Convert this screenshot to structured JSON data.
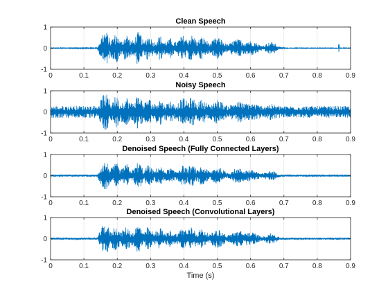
{
  "figure": {
    "xlabel": "Time (s)"
  },
  "chart_data": [
    {
      "type": "line",
      "title": "Clean Speech",
      "xlim": [
        0,
        0.9
      ],
      "ylim": [
        -1,
        1
      ],
      "xticks": [
        0,
        0.1,
        0.2,
        0.3,
        0.4,
        0.5,
        0.6,
        0.7,
        0.8,
        0.9
      ],
      "xtick_labels": [
        "0",
        "0.1",
        "0.2",
        "0.3",
        "0.4",
        "0.5",
        "0.6",
        "0.7",
        "0.8",
        "0.9"
      ],
      "yticks": [
        -1,
        0,
        1
      ],
      "ytick_labels": [
        "-1",
        "0",
        "1"
      ],
      "grid": true,
      "color": "#0072BD",
      "noise_floor": 0.02,
      "envelope_x": [
        0,
        0.14,
        0.15,
        0.16,
        0.17,
        0.18,
        0.19,
        0.2,
        0.21,
        0.22,
        0.23,
        0.24,
        0.25,
        0.26,
        0.27,
        0.28,
        0.29,
        0.3,
        0.31,
        0.32,
        0.33,
        0.34,
        0.35,
        0.36,
        0.37,
        0.38,
        0.39,
        0.4,
        0.41,
        0.42,
        0.43,
        0.44,
        0.45,
        0.46,
        0.47,
        0.48,
        0.49,
        0.5,
        0.51,
        0.52,
        0.53,
        0.54,
        0.55,
        0.56,
        0.57,
        0.58,
        0.59,
        0.6,
        0.61,
        0.62,
        0.63,
        0.64,
        0.65,
        0.66,
        0.67,
        0.68,
        0.69,
        0.7,
        0.71,
        0.72,
        0.9
      ],
      "envelope_y": [
        0.02,
        0.03,
        0.45,
        0.85,
        0.75,
        0.35,
        0.62,
        0.7,
        0.3,
        0.55,
        0.68,
        0.35,
        0.4,
        0.78,
        0.72,
        0.25,
        0.62,
        0.55,
        0.25,
        0.5,
        0.6,
        0.3,
        0.35,
        0.48,
        0.3,
        0.3,
        0.55,
        0.62,
        0.4,
        0.65,
        0.58,
        0.3,
        0.55,
        0.5,
        0.35,
        0.22,
        0.45,
        0.52,
        0.45,
        0.3,
        0.18,
        0.25,
        0.4,
        0.42,
        0.42,
        0.3,
        0.38,
        0.35,
        0.32,
        0.25,
        0.12,
        0.15,
        0.25,
        0.3,
        0.28,
        0.12,
        0.05,
        0.03,
        0.02,
        0.02,
        0.02
      ],
      "spikes": [
        {
          "x": 0.865,
          "amp": 0.18
        }
      ]
    },
    {
      "type": "line",
      "title": "Noisy Speech",
      "xlim": [
        0,
        0.9
      ],
      "ylim": [
        -1,
        1
      ],
      "xticks": [
        0,
        0.1,
        0.2,
        0.3,
        0.4,
        0.5,
        0.6,
        0.7,
        0.8,
        0.9
      ],
      "xtick_labels": [
        "0",
        "0.1",
        "0.2",
        "0.3",
        "0.4",
        "0.5",
        "0.6",
        "0.7",
        "0.8",
        "0.9"
      ],
      "yticks": [
        -1,
        0,
        1
      ],
      "ytick_labels": [
        "-1",
        "0",
        "1"
      ],
      "grid": true,
      "color": "#0072BD",
      "noise_floor": 0.28,
      "envelope_x": [
        0,
        0.14,
        0.15,
        0.16,
        0.17,
        0.18,
        0.19,
        0.2,
        0.21,
        0.22,
        0.23,
        0.24,
        0.25,
        0.26,
        0.27,
        0.28,
        0.29,
        0.3,
        0.31,
        0.32,
        0.33,
        0.34,
        0.35,
        0.36,
        0.37,
        0.38,
        0.39,
        0.4,
        0.41,
        0.42,
        0.43,
        0.44,
        0.45,
        0.46,
        0.47,
        0.48,
        0.49,
        0.5,
        0.51,
        0.52,
        0.53,
        0.54,
        0.55,
        0.56,
        0.57,
        0.58,
        0.59,
        0.6,
        0.61,
        0.62,
        0.63,
        0.64,
        0.65,
        0.66,
        0.67,
        0.68,
        0.69,
        0.7,
        0.71,
        0.72,
        0.9
      ],
      "envelope_y": [
        0.28,
        0.3,
        0.55,
        0.9,
        0.8,
        0.45,
        0.7,
        0.75,
        0.4,
        0.6,
        0.72,
        0.42,
        0.48,
        0.82,
        0.75,
        0.35,
        0.68,
        0.6,
        0.35,
        0.55,
        0.62,
        0.38,
        0.42,
        0.55,
        0.38,
        0.38,
        0.6,
        0.66,
        0.48,
        0.68,
        0.62,
        0.38,
        0.6,
        0.55,
        0.42,
        0.32,
        0.52,
        0.58,
        0.52,
        0.38,
        0.3,
        0.35,
        0.48,
        0.5,
        0.5,
        0.38,
        0.45,
        0.42,
        0.4,
        0.35,
        0.3,
        0.3,
        0.35,
        0.38,
        0.36,
        0.3,
        0.28,
        0.28,
        0.28,
        0.28,
        0.28
      ],
      "spikes": []
    },
    {
      "type": "line",
      "title": "Denoised Speech (Fully Connected Layers)",
      "xlim": [
        0,
        0.9
      ],
      "ylim": [
        -1,
        1
      ],
      "xticks": [
        0,
        0.1,
        0.2,
        0.3,
        0.4,
        0.5,
        0.6,
        0.7,
        0.8,
        0.9
      ],
      "xtick_labels": [
        "0",
        "0.1",
        "0.2",
        "0.3",
        "0.4",
        "0.5",
        "0.6",
        "0.7",
        "0.8",
        "0.9"
      ],
      "yticks": [
        -1,
        0,
        1
      ],
      "ytick_labels": [
        "-1",
        "0",
        "1"
      ],
      "grid": true,
      "color": "#0072BD",
      "noise_floor": 0.04,
      "envelope_x": [
        0,
        0.14,
        0.15,
        0.16,
        0.17,
        0.18,
        0.19,
        0.2,
        0.21,
        0.22,
        0.23,
        0.24,
        0.25,
        0.26,
        0.27,
        0.28,
        0.29,
        0.3,
        0.31,
        0.32,
        0.33,
        0.34,
        0.35,
        0.36,
        0.37,
        0.38,
        0.39,
        0.4,
        0.41,
        0.42,
        0.43,
        0.44,
        0.45,
        0.46,
        0.47,
        0.48,
        0.49,
        0.5,
        0.51,
        0.52,
        0.53,
        0.54,
        0.55,
        0.56,
        0.57,
        0.58,
        0.59,
        0.6,
        0.61,
        0.62,
        0.63,
        0.64,
        0.65,
        0.66,
        0.67,
        0.68,
        0.69,
        0.7,
        0.71,
        0.72,
        0.9
      ],
      "envelope_y": [
        0.04,
        0.05,
        0.4,
        0.7,
        0.62,
        0.3,
        0.52,
        0.58,
        0.25,
        0.45,
        0.56,
        0.28,
        0.32,
        0.62,
        0.58,
        0.2,
        0.5,
        0.45,
        0.2,
        0.4,
        0.48,
        0.24,
        0.28,
        0.38,
        0.24,
        0.24,
        0.44,
        0.5,
        0.32,
        0.52,
        0.46,
        0.24,
        0.44,
        0.4,
        0.28,
        0.18,
        0.36,
        0.42,
        0.36,
        0.24,
        0.14,
        0.2,
        0.32,
        0.34,
        0.34,
        0.24,
        0.3,
        0.28,
        0.26,
        0.2,
        0.1,
        0.12,
        0.2,
        0.24,
        0.22,
        0.1,
        0.06,
        0.05,
        0.04,
        0.04,
        0.04
      ],
      "spikes": []
    },
    {
      "type": "line",
      "title": "Denoised Speech (Convolutional Layers)",
      "xlim": [
        0,
        0.9
      ],
      "ylim": [
        -1,
        1
      ],
      "xticks": [
        0,
        0.1,
        0.2,
        0.3,
        0.4,
        0.5,
        0.6,
        0.7,
        0.8,
        0.9
      ],
      "xtick_labels": [
        "0",
        "0.1",
        "0.2",
        "0.3",
        "0.4",
        "0.5",
        "0.6",
        "0.7",
        "0.8",
        "0.9"
      ],
      "yticks": [
        -1,
        0,
        1
      ],
      "ytick_labels": [
        "-1",
        "0",
        "1"
      ],
      "grid": true,
      "color": "#0072BD",
      "noise_floor": 0.03,
      "envelope_x": [
        0,
        0.14,
        0.15,
        0.16,
        0.17,
        0.18,
        0.19,
        0.2,
        0.21,
        0.22,
        0.23,
        0.24,
        0.25,
        0.26,
        0.27,
        0.28,
        0.29,
        0.3,
        0.31,
        0.32,
        0.33,
        0.34,
        0.35,
        0.36,
        0.37,
        0.38,
        0.39,
        0.4,
        0.41,
        0.42,
        0.43,
        0.44,
        0.45,
        0.46,
        0.47,
        0.48,
        0.49,
        0.5,
        0.51,
        0.52,
        0.53,
        0.54,
        0.55,
        0.56,
        0.57,
        0.58,
        0.59,
        0.6,
        0.61,
        0.62,
        0.63,
        0.64,
        0.65,
        0.66,
        0.67,
        0.68,
        0.69,
        0.7,
        0.71,
        0.72,
        0.9
      ],
      "envelope_y": [
        0.03,
        0.04,
        0.42,
        0.75,
        0.66,
        0.32,
        0.55,
        0.62,
        0.27,
        0.48,
        0.6,
        0.3,
        0.35,
        0.68,
        0.63,
        0.22,
        0.55,
        0.48,
        0.22,
        0.44,
        0.52,
        0.26,
        0.3,
        0.42,
        0.26,
        0.26,
        0.48,
        0.54,
        0.35,
        0.56,
        0.5,
        0.26,
        0.48,
        0.44,
        0.3,
        0.2,
        0.4,
        0.46,
        0.4,
        0.26,
        0.16,
        0.22,
        0.35,
        0.37,
        0.37,
        0.26,
        0.33,
        0.3,
        0.28,
        0.22,
        0.11,
        0.13,
        0.22,
        0.26,
        0.24,
        0.11,
        0.05,
        0.04,
        0.03,
        0.03,
        0.03
      ],
      "spikes": []
    }
  ]
}
